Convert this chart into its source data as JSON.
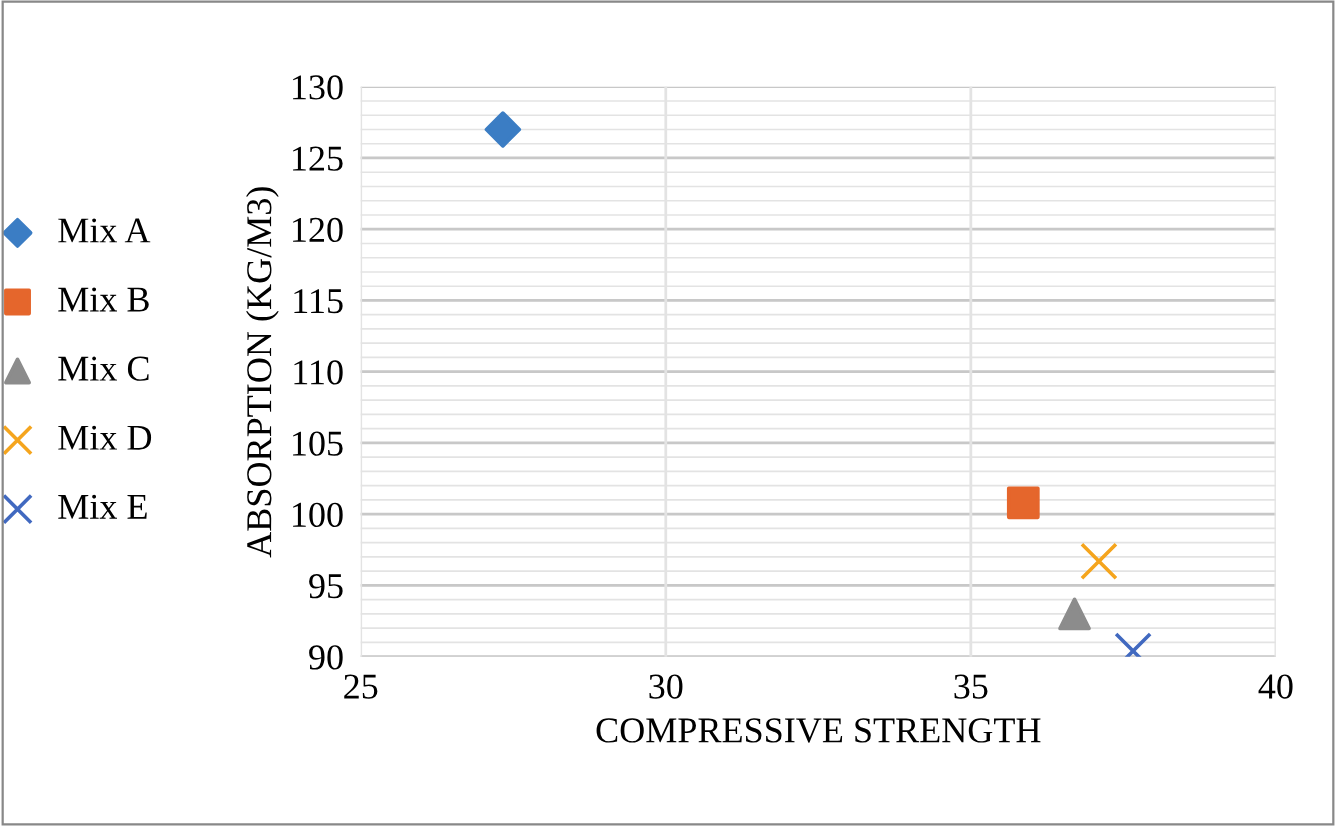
{
  "chart_data": {
    "type": "scatter",
    "xlabel": "COMPRESSIVE STRENGTH",
    "ylabel": "ABSORPTION (KG/M3)",
    "series": [
      {
        "name": "Mix A",
        "color": "#3b7dc4",
        "marker": "diamond",
        "x": [
          27.33
        ],
        "values": [
          127.0
        ]
      },
      {
        "name": "Mix B",
        "color": "#e5662c",
        "marker": "square",
        "x": [
          35.86
        ],
        "values": [
          100.8
        ]
      },
      {
        "name": "Mix C",
        "color": "#8c8c8c",
        "marker": "triangle",
        "x": [
          36.7
        ],
        "values": [
          93.0
        ]
      },
      {
        "name": "Mix D",
        "color": "#f5a51e",
        "marker": "cross",
        "x": [
          37.1
        ],
        "values": [
          96.7
        ]
      },
      {
        "name": "Mix E",
        "color": "#4169c0",
        "marker": "cross",
        "x": [
          37.66
        ],
        "values": [
          90.4
        ]
      }
    ],
    "xlim": [
      25,
      40
    ],
    "xticks": [
      25,
      30,
      35,
      40
    ],
    "ylim": [
      90,
      130
    ],
    "yticks": [
      90,
      95,
      100,
      105,
      110,
      115,
      120,
      125,
      130
    ],
    "grid": true,
    "legend": "left"
  }
}
